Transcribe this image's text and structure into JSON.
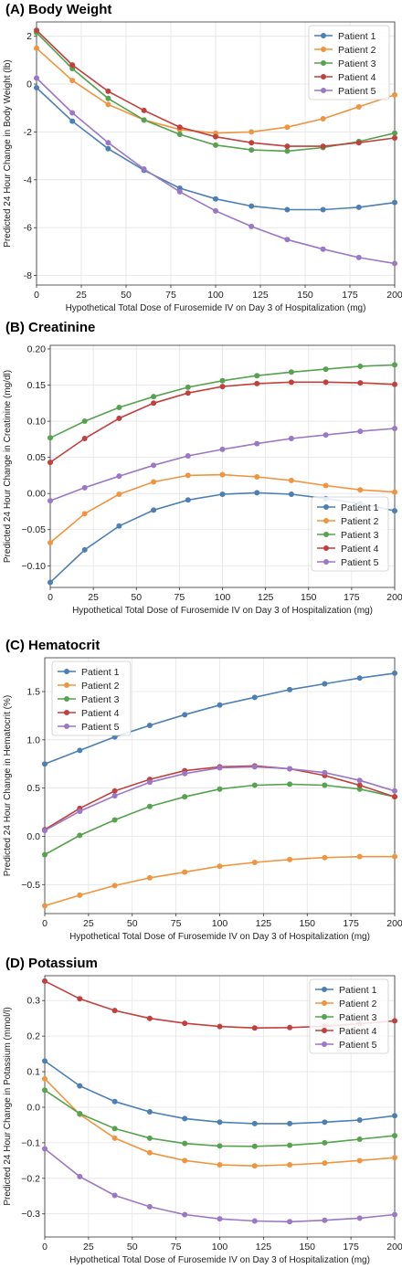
{
  "colors": {
    "patient1": "#4c7fb4",
    "patient2": "#f0953f",
    "patient3": "#55a24f",
    "patient4": "#c1403d",
    "patient5": "#9b77c5"
  },
  "chart_data": [
    {
      "type": "line",
      "title": "(A) Body Weight",
      "xlabel": "Hypothetical Total Dose of Furosemide IV on Day 3 of Hospitalization (mg)",
      "ylabel": "Predicted 24 Hour Change in Body Weight (lb)",
      "x": [
        0,
        20,
        40,
        60,
        80,
        100,
        120,
        140,
        160,
        180,
        200
      ],
      "xlim": [
        0,
        200
      ],
      "ylim": [
        -8.4,
        2.6
      ],
      "xticks": [
        0,
        25,
        50,
        75,
        100,
        125,
        150,
        175,
        200
      ],
      "yticks": [
        -8,
        -6,
        -4,
        -2,
        0,
        2
      ],
      "legend": "top-right",
      "grid": true,
      "series": [
        {
          "name": "Patient 1",
          "values": [
            -0.15,
            -1.55,
            -2.7,
            -3.6,
            -4.35,
            -4.8,
            -5.1,
            -5.25,
            -5.25,
            -5.15,
            -4.95
          ]
        },
        {
          "name": "Patient 2",
          "values": [
            1.5,
            0.15,
            -0.85,
            -1.5,
            -1.9,
            -2.05,
            -2.0,
            -1.8,
            -1.45,
            -0.95,
            -0.45
          ]
        },
        {
          "name": "Patient 3",
          "values": [
            2.15,
            0.65,
            -0.6,
            -1.5,
            -2.1,
            -2.55,
            -2.75,
            -2.8,
            -2.65,
            -2.4,
            -2.05
          ]
        },
        {
          "name": "Patient 4",
          "values": [
            2.25,
            0.8,
            -0.3,
            -1.1,
            -1.8,
            -2.2,
            -2.45,
            -2.6,
            -2.6,
            -2.45,
            -2.25
          ]
        },
        {
          "name": "Patient 5",
          "values": [
            0.25,
            -1.2,
            -2.45,
            -3.55,
            -4.5,
            -5.3,
            -5.95,
            -6.5,
            -6.9,
            -7.25,
            -7.5
          ]
        }
      ]
    },
    {
      "type": "line",
      "title": "(B) Creatinine",
      "xlabel": "Hypothetical Total Dose of Furosemide IV on Day 3 of Hospitalization (mg)",
      "ylabel": "Predicted 24 Hour Change in Creatinine (mg/dl)",
      "x": [
        0,
        20,
        40,
        60,
        80,
        100,
        120,
        140,
        160,
        180,
        200
      ],
      "xlim": [
        0,
        200
      ],
      "ylim": [
        -0.13,
        0.205
      ],
      "xticks": [
        0,
        25,
        50,
        75,
        100,
        125,
        150,
        175,
        200
      ],
      "yticks": [
        -0.1,
        -0.05,
        0.0,
        0.05,
        0.1,
        0.15,
        0.2
      ],
      "yticklabels": [
        "−0.10",
        "−0.05",
        "0.00",
        "0.05",
        "0.10",
        "0.15",
        "0.20"
      ],
      "legend": "bottom-right",
      "grid": true,
      "series": [
        {
          "name": "Patient 1",
          "values": [
            -0.123,
            -0.078,
            -0.045,
            -0.023,
            -0.009,
            -0.001,
            0.001,
            -0.001,
            -0.007,
            -0.014,
            -0.024
          ]
        },
        {
          "name": "Patient 2",
          "values": [
            -0.068,
            -0.028,
            -0.001,
            0.016,
            0.025,
            0.026,
            0.023,
            0.018,
            0.011,
            0.005,
            0.002
          ]
        },
        {
          "name": "Patient 3",
          "values": [
            0.077,
            0.1,
            0.119,
            0.134,
            0.147,
            0.156,
            0.163,
            0.168,
            0.172,
            0.176,
            0.178
          ]
        },
        {
          "name": "Patient 4",
          "values": [
            0.043,
            0.076,
            0.104,
            0.125,
            0.139,
            0.148,
            0.152,
            0.154,
            0.154,
            0.153,
            0.151
          ]
        },
        {
          "name": "Patient 5",
          "values": [
            -0.01,
            0.008,
            0.024,
            0.039,
            0.052,
            0.061,
            0.069,
            0.076,
            0.081,
            0.086,
            0.09
          ]
        }
      ]
    },
    {
      "type": "line",
      "title": "(C) Hematocrit",
      "xlabel": "Hypothetical Total Dose of Furosemide IV on Day 3 of Hospitalization (mg)",
      "ylabel": "Predicted 24 Hour Change in Hematocrit (%)",
      "x": [
        0,
        20,
        40,
        60,
        80,
        100,
        120,
        140,
        160,
        180,
        200
      ],
      "xlim": [
        0,
        200
      ],
      "ylim": [
        -0.8,
        1.85
      ],
      "xticks": [
        0,
        25,
        50,
        75,
        100,
        125,
        150,
        175,
        200
      ],
      "yticks": [
        -0.5,
        0.0,
        0.5,
        1.0,
        1.5
      ],
      "yticklabels": [
        "−0.5",
        "0.0",
        "0.5",
        "1.0",
        "1.5"
      ],
      "legend": "top-left",
      "grid": true,
      "series": [
        {
          "name": "Patient 1",
          "values": [
            0.75,
            0.89,
            1.03,
            1.15,
            1.26,
            1.36,
            1.44,
            1.52,
            1.58,
            1.64,
            1.69
          ]
        },
        {
          "name": "Patient 2",
          "values": [
            -0.72,
            -0.61,
            -0.51,
            -0.43,
            -0.37,
            -0.31,
            -0.27,
            -0.24,
            -0.22,
            -0.21,
            -0.21
          ]
        },
        {
          "name": "Patient 3",
          "values": [
            -0.19,
            0.01,
            0.17,
            0.31,
            0.41,
            0.49,
            0.53,
            0.54,
            0.53,
            0.49,
            0.41
          ]
        },
        {
          "name": "Patient 4",
          "values": [
            0.07,
            0.29,
            0.47,
            0.59,
            0.68,
            0.72,
            0.73,
            0.7,
            0.63,
            0.53,
            0.41
          ]
        },
        {
          "name": "Patient 5",
          "values": [
            0.06,
            0.26,
            0.42,
            0.56,
            0.65,
            0.71,
            0.72,
            0.7,
            0.66,
            0.58,
            0.47
          ]
        }
      ]
    },
    {
      "type": "line",
      "title": "(D) Potassium",
      "xlabel": "Hypothetical Total Dose of Furosemide IV on Day 3 of Hospitalization (mg)",
      "ylabel": "Predicted 24 Hour Change in Potassium (mmol/l)",
      "x": [
        0,
        20,
        40,
        60,
        80,
        100,
        120,
        140,
        160,
        180,
        200
      ],
      "xlim": [
        0,
        200
      ],
      "ylim": [
        -0.365,
        0.37
      ],
      "xticks": [
        0,
        25,
        50,
        75,
        100,
        125,
        150,
        175,
        200
      ],
      "yticks": [
        -0.3,
        -0.2,
        -0.1,
        0.0,
        0.1,
        0.2,
        0.3
      ],
      "yticklabels": [
        "−0.3",
        "−0.2",
        "−0.1",
        "0.0",
        "0.1",
        "0.2",
        "0.3"
      ],
      "legend": "top-right",
      "grid": true,
      "series": [
        {
          "name": "Patient 1",
          "values": [
            0.13,
            0.06,
            0.016,
            -0.013,
            -0.032,
            -0.042,
            -0.046,
            -0.046,
            -0.042,
            -0.036,
            -0.024
          ]
        },
        {
          "name": "Patient 2",
          "values": [
            0.08,
            -0.02,
            -0.087,
            -0.128,
            -0.15,
            -0.162,
            -0.165,
            -0.162,
            -0.157,
            -0.15,
            -0.142
          ]
        },
        {
          "name": "Patient 3",
          "values": [
            0.048,
            -0.018,
            -0.06,
            -0.087,
            -0.102,
            -0.109,
            -0.11,
            -0.107,
            -0.1,
            -0.09,
            -0.08
          ]
        },
        {
          "name": "Patient 4",
          "values": [
            0.355,
            0.305,
            0.272,
            0.25,
            0.236,
            0.227,
            0.223,
            0.224,
            0.228,
            0.235,
            0.243
          ]
        },
        {
          "name": "Patient 5",
          "values": [
            -0.117,
            -0.195,
            -0.248,
            -0.28,
            -0.302,
            -0.314,
            -0.32,
            -0.322,
            -0.318,
            -0.312,
            -0.302
          ]
        }
      ]
    }
  ]
}
